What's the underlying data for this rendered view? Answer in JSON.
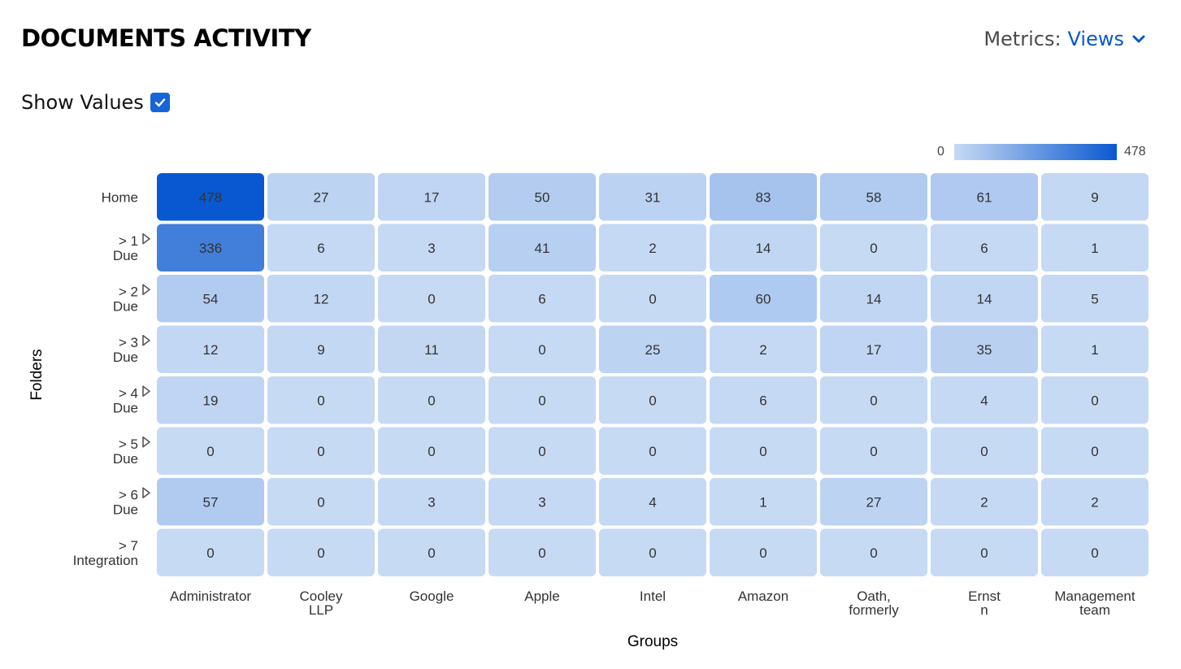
{
  "header": {
    "title": "DOCUMENTS ACTIVITY",
    "metrics_label": "Metrics:",
    "metrics_value": "Views"
  },
  "controls": {
    "show_values_label": "Show Values",
    "show_values_checked": true
  },
  "legend": {
    "min": "0",
    "max": "478",
    "color_low": "#c7daf4",
    "color_high": "#0a58d1"
  },
  "chart_data": {
    "type": "heatmap",
    "title": "",
    "xlabel": "Groups",
    "ylabel": "Folders",
    "x_categories": [
      [
        "Administrator"
      ],
      [
        "Cooley",
        "LLP"
      ],
      [
        "Google"
      ],
      [
        "Apple"
      ],
      [
        "Intel"
      ],
      [
        "Amazon"
      ],
      [
        "Oath,",
        "formerly"
      ],
      [
        "Ernst",
        "n"
      ],
      [
        "Management",
        "team"
      ]
    ],
    "y_categories": [
      {
        "lines": [
          "Home"
        ],
        "expandable": false
      },
      {
        "lines": [
          "> 1",
          "Due"
        ],
        "expandable": true
      },
      {
        "lines": [
          "> 2",
          "Due"
        ],
        "expandable": true
      },
      {
        "lines": [
          "> 3",
          "Due"
        ],
        "expandable": true
      },
      {
        "lines": [
          "> 4",
          "Due"
        ],
        "expandable": true
      },
      {
        "lines": [
          "> 5",
          "Due"
        ],
        "expandable": true
      },
      {
        "lines": [
          "> 6",
          "Due"
        ],
        "expandable": true
      },
      {
        "lines": [
          "> 7",
          "Integration"
        ],
        "expandable": false
      }
    ],
    "values": [
      [
        478,
        27,
        17,
        50,
        31,
        83,
        58,
        61,
        9
      ],
      [
        336,
        6,
        3,
        41,
        2,
        14,
        0,
        6,
        1
      ],
      [
        54,
        12,
        0,
        6,
        0,
        60,
        14,
        14,
        5
      ],
      [
        12,
        9,
        11,
        0,
        25,
        2,
        17,
        35,
        1
      ],
      [
        19,
        0,
        0,
        0,
        0,
        6,
        0,
        4,
        0
      ],
      [
        0,
        0,
        0,
        0,
        0,
        0,
        0,
        0,
        0
      ],
      [
        57,
        0,
        3,
        3,
        4,
        1,
        27,
        2,
        2
      ],
      [
        0,
        0,
        0,
        0,
        0,
        0,
        0,
        0,
        0
      ]
    ],
    "color_range": [
      0,
      478
    ],
    "show_values": true
  }
}
